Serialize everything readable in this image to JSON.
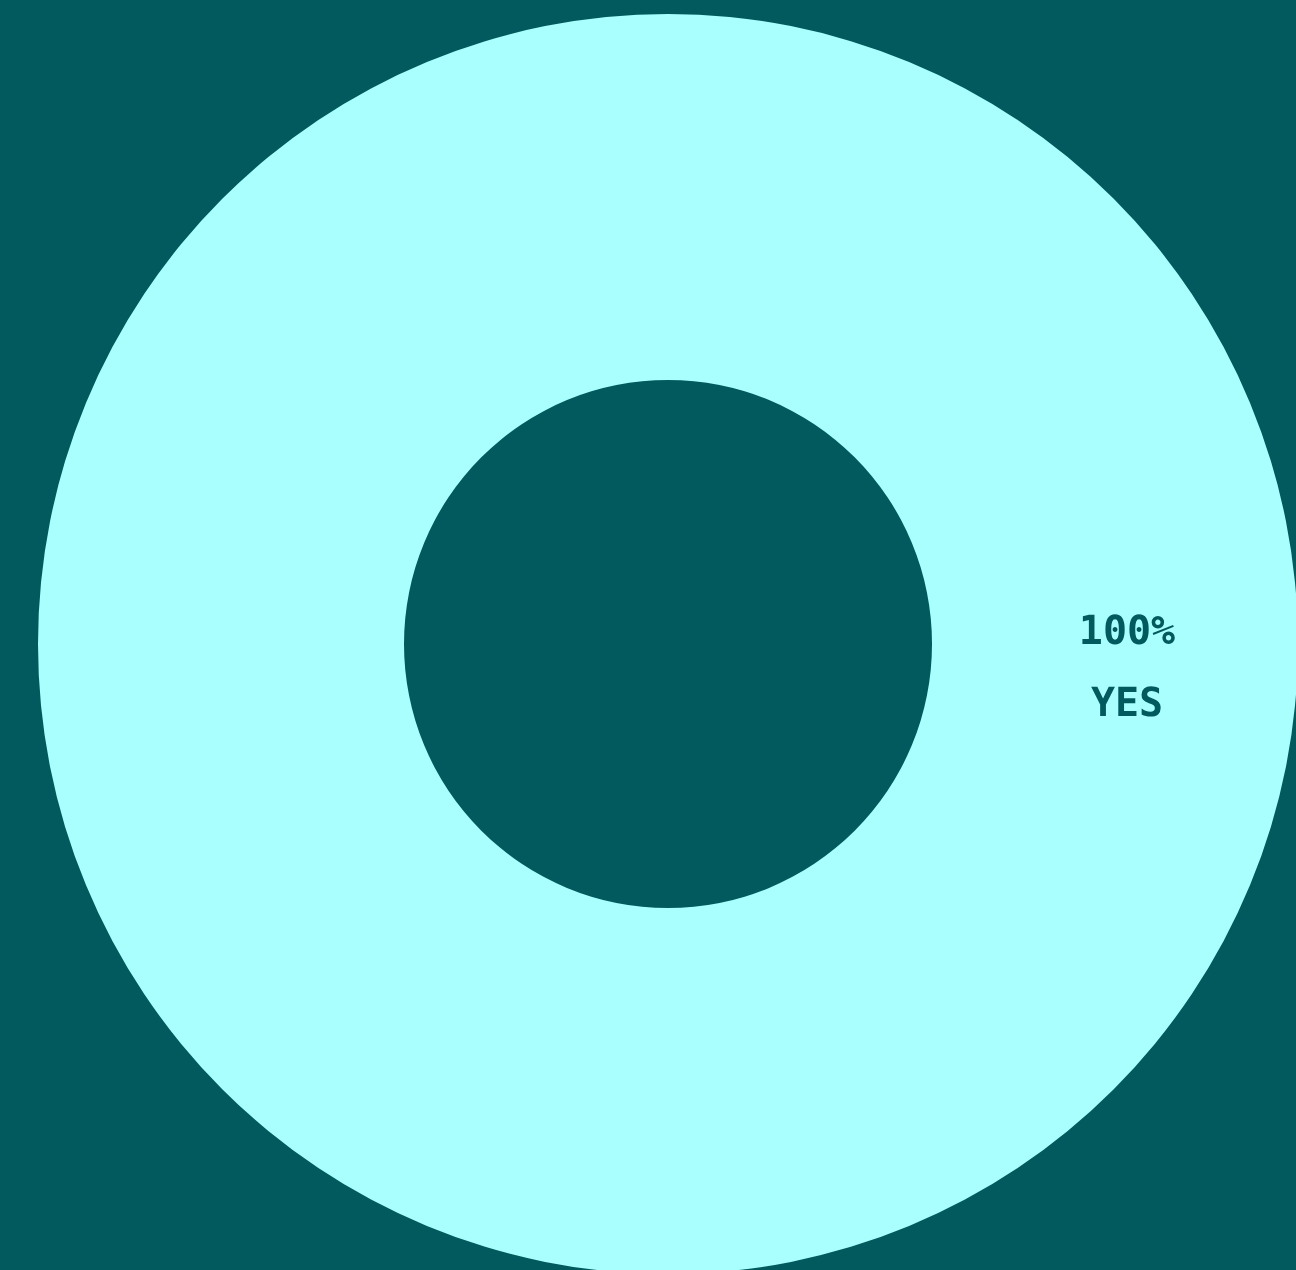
{
  "chart_data": {
    "type": "donut",
    "categories": [
      "YES"
    ],
    "values": [
      100
    ],
    "colors": [
      "#a8fffd"
    ],
    "value_labels": [
      "100%"
    ]
  }
}
